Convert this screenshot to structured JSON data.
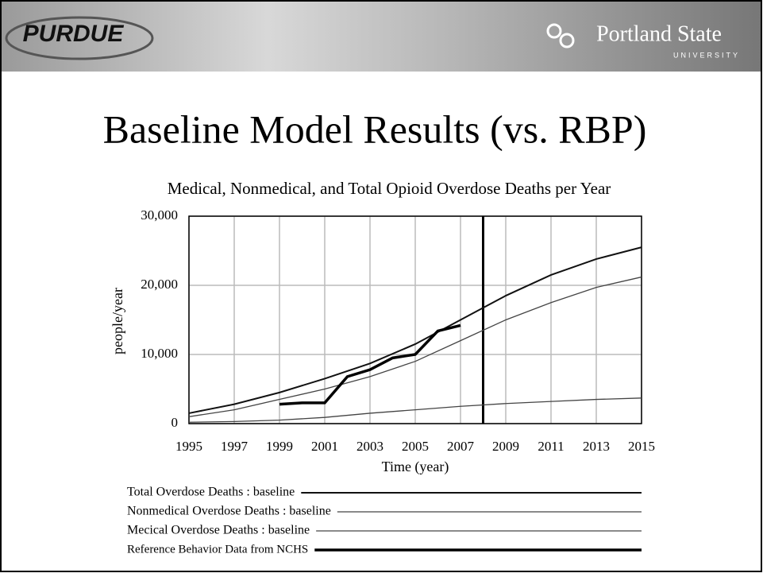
{
  "slide": {
    "left_logo": "PURDUE",
    "right_logo": "Portland State",
    "right_logo_sub": "UNIVERSITY",
    "title": "Baseline Model Results (vs. RBP)"
  },
  "chart_data": {
    "type": "line",
    "title": "Medical, Nonmedical, and Total Opioid Overdose Deaths per Year",
    "x_label": "Time (year)",
    "y_label": "people/year",
    "xlim": [
      1995,
      2015
    ],
    "xticks": [
      1995,
      1997,
      1999,
      2001,
      2003,
      2005,
      2007,
      2009,
      2011,
      2013,
      2015
    ],
    "ylim": [
      0,
      30000
    ],
    "yticks": [
      0,
      {
        "value": 10000,
        "label": "10,000"
      },
      {
        "value": 20000,
        "label": "20,000"
      },
      {
        "value": 30000,
        "label": "30,000"
      }
    ],
    "grid": true,
    "vline": 2008,
    "series": [
      {
        "name": "Total Overdose Deaths : baseline",
        "color": "#111111",
        "width": 2,
        "x": [
          1995,
          1997,
          1999,
          2001,
          2003,
          2005,
          2007,
          2009,
          2011,
          2013,
          2015
        ],
        "values": [
          1500,
          2800,
          4500,
          6500,
          8700,
          11500,
          15000,
          18500,
          21500,
          23800,
          25500
        ]
      },
      {
        "name": "Nonmedical Overdose Deaths : baseline",
        "color": "#444444",
        "width": 1.3,
        "x": [
          1995,
          1997,
          1999,
          2001,
          2003,
          2005,
          2007,
          2009,
          2011,
          2013,
          2015
        ],
        "values": [
          1000,
          2000,
          3500,
          5000,
          6800,
          9000,
          12000,
          15000,
          17500,
          19700,
          21200
        ]
      },
      {
        "name": "Mecical Overdose Deaths : baseline",
        "color": "#444444",
        "width": 1.3,
        "x": [
          1995,
          1997,
          1999,
          2001,
          2003,
          2005,
          2007,
          2009,
          2011,
          2013,
          2015
        ],
        "values": [
          200,
          300,
          500,
          900,
          1500,
          2000,
          2500,
          2900,
          3200,
          3500,
          3700
        ]
      },
      {
        "name": "Reference Behavior Data from NCHS",
        "color": "#000000",
        "width": 3.5,
        "x": [
          1999,
          2000,
          2001,
          2002,
          2003,
          2004,
          2005,
          2006,
          2007
        ],
        "values": [
          2800,
          3000,
          3000,
          6800,
          7800,
          9500,
          10000,
          13400,
          14200
        ]
      }
    ]
  }
}
